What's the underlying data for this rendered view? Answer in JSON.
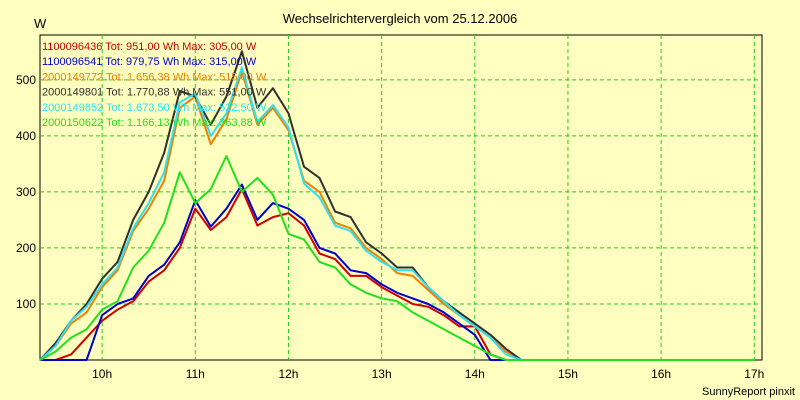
{
  "chart_data": {
    "type": "line",
    "title": "Wechselrichtervergleich vom 25.12.2006",
    "ylabel": "W",
    "xlabel": "",
    "footer": "SunnyReport pinxit",
    "x_start_hour": 9.333,
    "x_step_hours": 0.1667,
    "xlim": [
      9.333,
      17.083
    ],
    "ylim": [
      0,
      580
    ],
    "x_tick_values": [
      10,
      11,
      12,
      13,
      14,
      15,
      16,
      17
    ],
    "x_ticks": [
      "10h",
      "11h",
      "12h",
      "13h",
      "14h",
      "15h",
      "16h",
      "17h"
    ],
    "y_ticks": [
      100,
      200,
      300,
      400,
      500
    ],
    "grid": true,
    "legend_position": "top-left",
    "series": [
      {
        "name": "1100096436",
        "legend": "1100096436 Tot: 951,00 Wh Max: 305,00 W",
        "color": "#d00000",
        "values": [
          0,
          0,
          10,
          40,
          70,
          90,
          105,
          140,
          160,
          200,
          270,
          232,
          255,
          305,
          240,
          255,
          262,
          240,
          190,
          180,
          150,
          150,
          130,
          115,
          100,
          95,
          80,
          60,
          60,
          10,
          0,
          0,
          0,
          0,
          0,
          0,
          0,
          0,
          0,
          0,
          0,
          0,
          0,
          0,
          0,
          0,
          0
        ]
      },
      {
        "name": "1100096541",
        "legend": "1100096541 Tot: 979,75 Wh Max: 315,00 W",
        "color": "#0000d0",
        "values": [
          0,
          0,
          0,
          0,
          80,
          100,
          110,
          150,
          170,
          210,
          285,
          238,
          270,
          313,
          250,
          280,
          270,
          250,
          200,
          190,
          160,
          155,
          135,
          120,
          110,
          100,
          85,
          65,
          45,
          0,
          0,
          0,
          0,
          0,
          0,
          0,
          0,
          0,
          0,
          0,
          0,
          0,
          0,
          0,
          0,
          0,
          0
        ]
      },
      {
        "name": "2000149772",
        "legend": "2000149772 Tot: 1.656,38 Wh Max: 515,00 W",
        "color": "#f08000",
        "values": [
          0,
          25,
          65,
          85,
          130,
          160,
          230,
          270,
          320,
          450,
          470,
          385,
          430,
          515,
          420,
          450,
          410,
          320,
          300,
          245,
          235,
          200,
          180,
          155,
          150,
          125,
          100,
          80,
          60,
          40,
          15,
          0,
          0,
          0,
          0,
          0,
          0,
          0,
          0,
          0,
          0,
          0,
          0,
          0,
          0,
          0,
          0
        ]
      },
      {
        "name": "2000149801",
        "legend": "2000149801 Tot: 1.770,88 Wh Max: 551,00 W",
        "color": "#303030",
        "values": [
          0,
          30,
          70,
          100,
          145,
          175,
          250,
          300,
          370,
          480,
          470,
          420,
          470,
          551,
          450,
          485,
          440,
          345,
          325,
          265,
          255,
          210,
          190,
          165,
          165,
          130,
          105,
          85,
          65,
          45,
          20,
          0,
          0,
          0,
          0,
          0,
          0,
          0,
          0,
          0,
          0,
          0,
          0,
          0,
          0,
          0,
          0
        ]
      },
      {
        "name": "2000149852",
        "legend": "2000149852 Tot: 1.673,50 Wh Max: 522,50 W",
        "color": "#30e0f0",
        "values": [
          0,
          25,
          70,
          95,
          135,
          165,
          235,
          280,
          335,
          460,
          475,
          400,
          440,
          522,
          425,
          455,
          415,
          315,
          290,
          240,
          230,
          195,
          175,
          160,
          160,
          130,
          105,
          80,
          60,
          40,
          10,
          0,
          0,
          0,
          0,
          0,
          0,
          0,
          0,
          0,
          0,
          0,
          0,
          0,
          0,
          0,
          0
        ]
      },
      {
        "name": "2000150622",
        "legend": "2000150622 Tot: 1.166,13 Wh Max: 363,88 W",
        "color": "#20e020",
        "values": [
          0,
          15,
          40,
          55,
          90,
          105,
          165,
          195,
          245,
          335,
          280,
          305,
          364,
          300,
          325,
          295,
          225,
          215,
          175,
          165,
          135,
          120,
          110,
          105,
          85,
          70,
          55,
          40,
          25,
          10,
          0,
          0,
          0,
          0,
          0,
          0,
          0,
          0,
          0,
          0,
          0,
          0,
          0,
          0,
          0,
          0,
          0
        ]
      }
    ]
  }
}
